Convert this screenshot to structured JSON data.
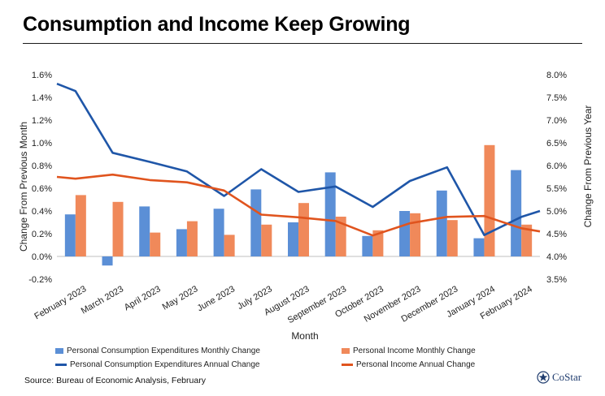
{
  "title": "Consumption and Income Keep Growing",
  "source": "Source: Bureau of Economic Analysis, February",
  "logo_text": "CoStar",
  "colors": {
    "pce_monthly": "#5b8fd6",
    "pi_monthly": "#f0895a",
    "pce_annual": "#1f56a8",
    "pi_annual": "#e0541e"
  },
  "chart_data": {
    "type": "bar",
    "title": "Consumption and Income Keep Growing",
    "xlabel": "Month",
    "ylabel": "Change From Previous Month",
    "y2label": "Change From Previous Year",
    "ylim": [
      -0.2,
      1.6
    ],
    "y2lim": [
      3.5,
      8.0
    ],
    "yticks": [
      "-0.2%",
      "0.0%",
      "0.2%",
      "0.4%",
      "0.6%",
      "0.8%",
      "1.0%",
      "1.2%",
      "1.4%",
      "1.6%"
    ],
    "y2ticks": [
      "3.5%",
      "4.0%",
      "4.5%",
      "5.0%",
      "5.5%",
      "6.0%",
      "6.5%",
      "7.0%",
      "7.5%",
      "8.0%"
    ],
    "categories": [
      "February 2023",
      "March 2023",
      "April 2023",
      "May 2023",
      "June 2023",
      "July 2023",
      "August 2023",
      "September 2023",
      "October 2023",
      "November 2023",
      "December 2023",
      "January 2024",
      "February 2024"
    ],
    "series": [
      {
        "name": "Personal Consumption Expenditures Monthly Change",
        "kind": "bar",
        "axis": "left",
        "values": [
          0.37,
          -0.08,
          0.44,
          0.24,
          0.42,
          0.59,
          0.3,
          0.74,
          0.18,
          0.4,
          0.58,
          0.16,
          0.76
        ]
      },
      {
        "name": "Personal Income Monthly Change",
        "kind": "bar",
        "axis": "left",
        "values": [
          0.54,
          0.48,
          0.21,
          0.31,
          0.19,
          0.28,
          0.47,
          0.35,
          0.23,
          0.38,
          0.32,
          0.98,
          0.28
        ]
      },
      {
        "name": "Personal Consumption Expenditures Annual Change",
        "kind": "line",
        "axis": "right",
        "x": [
          -0.5,
          0,
          1,
          2,
          3,
          4,
          5,
          6,
          7,
          8,
          9,
          10,
          11,
          12,
          12.5
        ],
        "values": [
          7.8,
          7.64,
          6.28,
          6.08,
          5.87,
          5.33,
          5.92,
          5.42,
          5.54,
          5.09,
          5.66,
          5.96,
          4.47,
          4.87,
          5.0
        ]
      },
      {
        "name": "Personal Income Annual Change",
        "kind": "line",
        "axis": "right",
        "x": [
          -0.5,
          0,
          1,
          2,
          3,
          4,
          5,
          6,
          7,
          8,
          9,
          10,
          11,
          12,
          12.5
        ],
        "values": [
          5.75,
          5.71,
          5.8,
          5.68,
          5.63,
          5.45,
          4.92,
          4.86,
          4.78,
          4.46,
          4.73,
          4.87,
          4.89,
          4.62,
          4.55
        ]
      }
    ],
    "legend": "bottom",
    "grid": false
  }
}
